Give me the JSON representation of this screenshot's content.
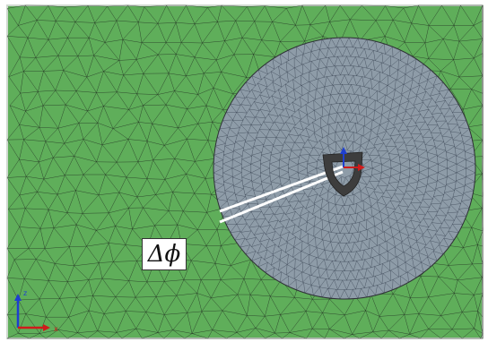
{
  "annotation": {
    "label": "Δϕ"
  },
  "triad": {
    "z": "z",
    "x": "x"
  },
  "colors": {
    "background_mesh_fill": "#5fae5a",
    "rotor_disk_fill": "#8e9ca8",
    "mesh_line": "#1f2a1f",
    "blade_fill": "#3d3d3d",
    "sector_lines": "#ffffff",
    "axis_red": "#d01b1b",
    "axis_blue": "#1e3fd0"
  }
}
